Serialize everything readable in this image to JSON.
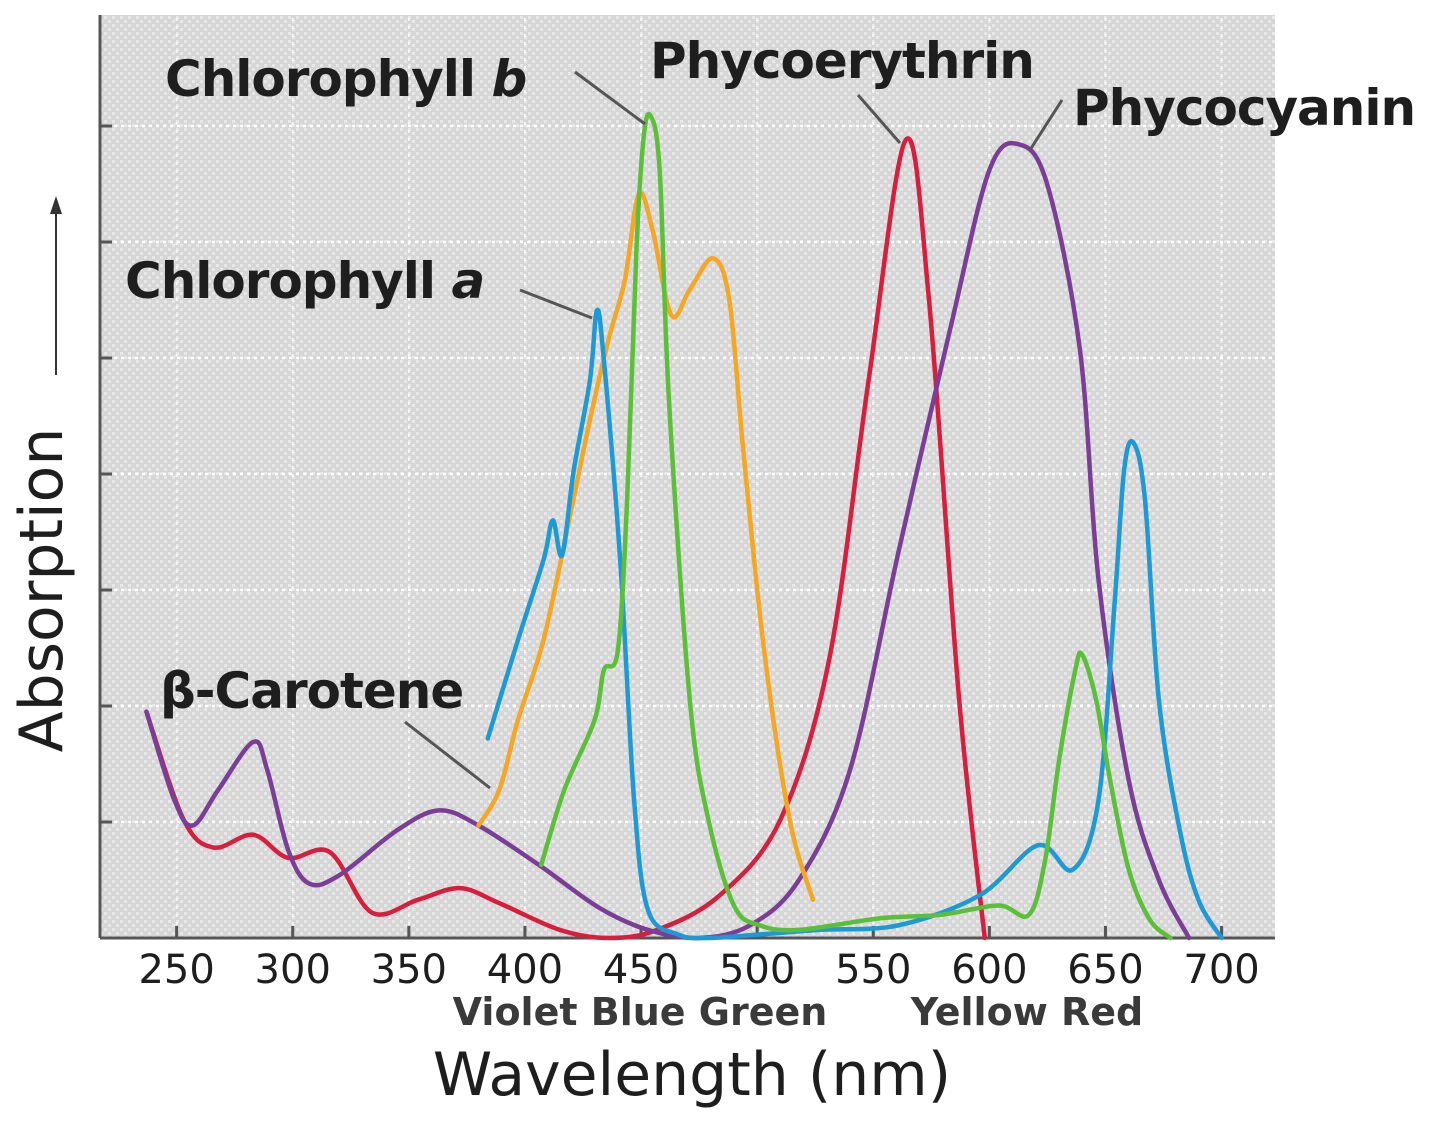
{
  "chart_data": {
    "type": "line",
    "xlabel": "Wavelength (nm)",
    "ylabel": "Absorption",
    "xlim": [
      217,
      723
    ],
    "ylim": [
      0,
      8
    ],
    "xticks": [
      250,
      300,
      350,
      400,
      450,
      500,
      550,
      600,
      650,
      700
    ],
    "grid": true,
    "color_bands": [
      {
        "label": "Violet Blue Green"
      },
      {
        "label": "Yellow Red"
      }
    ],
    "series": [
      {
        "name": "Phycoerythrin",
        "label_main": "Phycoerythrin",
        "label_italic": "",
        "color": "#d81e3c",
        "x": [
          237,
          253,
          266,
          283,
          298,
          316,
          334,
          354,
          372,
          389,
          415,
          436,
          457,
          484,
          510,
          531,
          548,
          564,
          574,
          587,
          598
        ],
        "y": [
          1.95,
          1.02,
          0.78,
          0.89,
          0.69,
          0.74,
          0.22,
          0.33,
          0.43,
          0.3,
          0.07,
          0.0,
          0.07,
          0.37,
          1.02,
          2.4,
          4.81,
          6.88,
          5.5,
          2.05,
          0.0
        ]
      },
      {
        "name": "Phycocyanin",
        "label_main": "Phycocyanin",
        "label_italic": "",
        "color": "#7a3e96",
        "x": [
          237,
          249,
          257,
          268,
          283,
          289,
          298,
          307,
          320,
          345,
          363,
          380,
          406,
          432,
          453,
          475,
          497,
          518,
          540,
          561,
          583,
          600,
          613,
          625,
          639,
          647,
          660,
          673,
          686
        ],
        "y": [
          1.95,
          1.19,
          0.97,
          1.28,
          1.69,
          1.45,
          0.76,
          0.47,
          0.54,
          0.93,
          1.1,
          0.97,
          0.63,
          0.26,
          0.07,
          0.0,
          0.11,
          0.5,
          1.45,
          3.34,
          5.24,
          6.62,
          6.84,
          6.49,
          5.07,
          3.09,
          1.36,
          0.5,
          0.0
        ]
      },
      {
        "name": "β-Carotene",
        "label_main": "β-Carotene",
        "label_italic": "",
        "color": "#f5a623",
        "x": [
          380,
          389,
          397,
          408,
          419,
          428,
          436,
          443,
          449,
          455,
          463,
          471,
          481,
          488,
          494,
          503,
          514,
          524
        ],
        "y": [
          0.97,
          1.28,
          1.88,
          2.57,
          3.6,
          4.47,
          5.16,
          5.67,
          6.41,
          6.1,
          5.37,
          5.59,
          5.86,
          5.5,
          4.21,
          2.48,
          1.02,
          0.33
        ]
      },
      {
        "name": "Chlorophyll a",
        "label_main": "Chlorophyll ",
        "label_italic": "a",
        "color": "#1d9ad6",
        "x": [
          384,
          397,
          408,
          412,
          416,
          421,
          428,
          431,
          434,
          441,
          447,
          453,
          466,
          479,
          501,
          527,
          561,
          596,
          621,
          636,
          647,
          654,
          658,
          662,
          667,
          673,
          682,
          690,
          700
        ],
        "y": [
          1.72,
          2.57,
          3.26,
          3.6,
          3.3,
          4.03,
          4.81,
          5.41,
          4.98,
          3.26,
          1.19,
          0.24,
          0.03,
          0.0,
          0.03,
          0.07,
          0.11,
          0.37,
          0.8,
          0.59,
          1.19,
          2.91,
          4.03,
          4.27,
          3.78,
          2.05,
          0.93,
          0.33,
          0.0
        ]
      },
      {
        "name": "Chlorophyll b",
        "label_main": "Chlorophyll ",
        "label_italic": "b",
        "color": "#5cbf3a",
        "x": [
          407,
          417,
          430,
          434,
          440,
          444,
          448,
          451,
          454,
          458,
          462,
          471,
          479,
          490,
          501,
          518,
          553,
          579,
          604,
          617,
          624,
          630,
          637,
          640,
          646,
          652,
          660,
          669,
          678
        ],
        "y": [
          0.63,
          1.28,
          1.88,
          2.31,
          2.48,
          3.78,
          5.93,
          6.88,
          7.09,
          6.62,
          4.64,
          2.05,
          1.02,
          0.28,
          0.11,
          0.07,
          0.17,
          0.2,
          0.28,
          0.2,
          0.67,
          1.53,
          2.31,
          2.44,
          2.05,
          1.36,
          0.59,
          0.16,
          0.0
        ]
      }
    ]
  }
}
